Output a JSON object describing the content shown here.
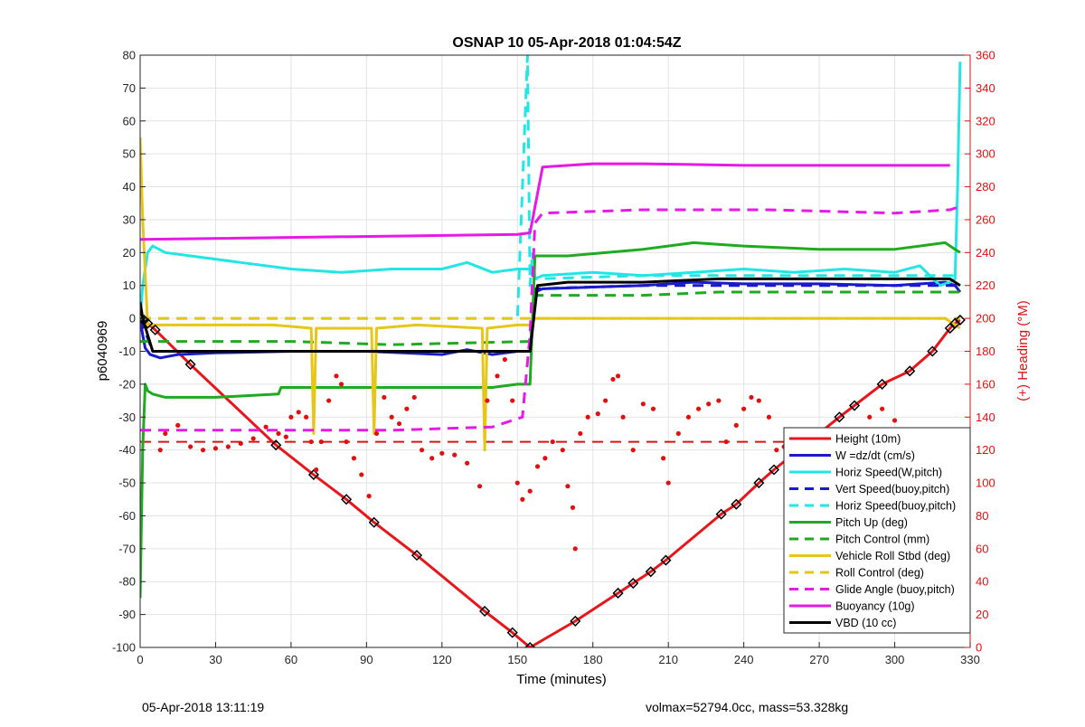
{
  "footer": {
    "timestamp": "05-Apr-2018 13:11:19",
    "summary": "volmax=52794.0cc, mass=53.328kg"
  },
  "chart_data": {
    "type": "line",
    "title": "OSNAP 10 05-Apr-2018 01:04:54Z",
    "xlabel": "Time (minutes)",
    "ylabel": "p6040969",
    "y2label": "(+) Heading (°M)",
    "xlim": [
      0,
      330
    ],
    "ylim": [
      -100,
      80
    ],
    "y2lim": [
      0,
      360
    ],
    "xticks": [
      0,
      30,
      60,
      90,
      120,
      150,
      180,
      210,
      240,
      270,
      300,
      330
    ],
    "yticks": [
      -100,
      -90,
      -80,
      -70,
      -60,
      -50,
      -40,
      -30,
      -20,
      -10,
      0,
      10,
      20,
      30,
      40,
      50,
      60,
      70,
      80
    ],
    "y2ticks": [
      0,
      20,
      40,
      60,
      80,
      100,
      120,
      140,
      160,
      180,
      200,
      220,
      240,
      260,
      280,
      300,
      320,
      340,
      360
    ],
    "grid": true,
    "legend_position": "bottom-right",
    "colors": {
      "height": "#e8161b",
      "w": "#1a1acc",
      "cyan": "#22e6e6",
      "blue_dash": "#1a1acc",
      "green": "#1faa1f",
      "yellow": "#e6c619",
      "magenta": "#e619e6",
      "black": "#000000",
      "heading": "#e01010",
      "right_axis": "#e01010"
    },
    "series": [
      {
        "name": "Height (10m)",
        "style": "solid",
        "color": "#e8161b",
        "marker": "diamond-triangle",
        "x": [
          0,
          1.5,
          3,
          6,
          20,
          54,
          69,
          82,
          93,
          110,
          137,
          148,
          155,
          173,
          190,
          196,
          203,
          209,
          231,
          237,
          246,
          252,
          278,
          284,
          295,
          306,
          315,
          322,
          324,
          326
        ],
        "y": [
          0,
          -0.5,
          -1.5,
          -3.5,
          -14,
          -38.5,
          -47.5,
          -55,
          -62,
          -72,
          -89,
          -95.5,
          -100,
          -92,
          -83.5,
          -80.5,
          -77,
          -73.5,
          -59.5,
          -56.5,
          -50,
          -46,
          -30,
          -26.5,
          -20,
          -16,
          -10,
          -3,
          -1.5,
          -0.5
        ]
      },
      {
        "name": "W =dz/dt (cm/s)",
        "style": "solid",
        "color": "#1a1acc",
        "x": [
          0,
          1,
          2,
          4,
          8,
          15,
          30,
          60,
          90,
          120,
          130,
          140,
          150,
          155,
          157,
          160,
          180,
          200,
          220,
          240,
          270,
          300,
          320,
          324,
          326
        ],
        "y": [
          0,
          -5,
          -9,
          -11,
          -12,
          -11,
          -10.5,
          -10,
          -10,
          -11,
          -9.5,
          -11,
          -10,
          -10,
          8,
          9,
          9.5,
          10,
          11,
          10.5,
          10.5,
          10,
          11,
          10,
          8
        ]
      },
      {
        "name": "Horiz Speed(W,pitch)",
        "style": "solid",
        "color": "#22e6e6",
        "x": [
          0,
          1,
          3,
          5,
          10,
          20,
          40,
          60,
          80,
          100,
          120,
          130,
          140,
          150,
          155,
          157,
          160,
          180,
          200,
          220,
          240,
          260,
          280,
          300,
          310,
          318,
          322,
          324,
          325,
          326
        ],
        "y": [
          0,
          10,
          20,
          22,
          20,
          19,
          17,
          15,
          14,
          15,
          15,
          17,
          14,
          15,
          15,
          12,
          13,
          14,
          13,
          14,
          15,
          14,
          15,
          14,
          16,
          10,
          11,
          12,
          40,
          78
        ]
      },
      {
        "name": "Vert Speed(buoy,pitch)",
        "style": "dashed",
        "color": "#1a1acc",
        "x": [
          0,
          5,
          60,
          120,
          155,
          157,
          200,
          260,
          326
        ],
        "y": [
          0,
          -10,
          -10,
          -10,
          -10,
          9,
          10,
          10,
          10
        ]
      },
      {
        "name": "Horiz Speed(buoy,pitch)",
        "style": "dashed",
        "color": "#22e6e6",
        "x": [
          0,
          5,
          60,
          120,
          150,
          154,
          155,
          156,
          157,
          200,
          260,
          326
        ],
        "y": [
          0,
          0,
          0,
          0,
          0,
          80,
          10,
          20,
          12,
          13,
          13,
          13
        ]
      },
      {
        "name": "Pitch Up (deg)",
        "style": "solid",
        "color": "#1faa1f",
        "x": [
          0,
          1,
          2,
          3,
          5,
          10,
          30,
          55,
          56,
          100,
          140,
          150,
          155,
          157,
          170,
          200,
          220,
          240,
          270,
          300,
          320,
          324,
          326
        ],
        "y": [
          -85,
          -40,
          -20,
          -22,
          -23,
          -24,
          -24,
          -23,
          -21,
          -21,
          -21,
          -20,
          -20,
          19,
          19,
          21,
          23,
          22,
          21,
          21,
          23,
          21,
          20
        ]
      },
      {
        "name": "Pitch Control (mm)",
        "style": "dashed",
        "color": "#1faa1f",
        "x": [
          0,
          5,
          60,
          100,
          155,
          157,
          200,
          230,
          326
        ],
        "y": [
          -7,
          -7,
          -7,
          -8,
          -7,
          7,
          7,
          8,
          8
        ]
      },
      {
        "name": "Vehicle Roll Stbd (deg)",
        "style": "solid",
        "color": "#e6c619",
        "x": [
          0,
          1,
          3,
          5,
          20,
          53,
          68,
          69,
          70,
          82,
          92,
          93,
          94,
          110,
          136,
          137,
          138,
          150,
          155,
          157,
          160,
          170,
          190,
          200,
          210,
          230,
          250,
          270,
          290,
          310,
          320,
          326
        ],
        "y": [
          55,
          30,
          -2,
          -2,
          -2,
          -2,
          -3,
          -35,
          -3,
          -3,
          -3,
          -35,
          -3,
          -2,
          -3,
          -40,
          -3,
          -2,
          -2,
          0,
          0,
          0,
          0,
          0,
          0,
          0,
          0,
          0,
          0,
          0,
          0,
          -3
        ]
      },
      {
        "name": "Roll Control (deg)",
        "style": "dashed",
        "color": "#e6c619",
        "x": [
          0,
          326
        ],
        "y": [
          0,
          0
        ]
      },
      {
        "name": "Glide Angle (buoy,pitch)",
        "style": "dashed",
        "color": "#e619e6",
        "x": [
          0,
          30,
          60,
          100,
          140,
          152,
          155,
          157,
          160,
          200,
          250,
          300,
          322,
          326
        ],
        "y": [
          -34,
          -34,
          -34,
          -34,
          -33,
          -30,
          -5,
          29,
          32,
          33,
          33,
          32,
          33,
          34
        ]
      },
      {
        "name": "Buoyancy (10g)",
        "style": "solid",
        "color": "#e619e6",
        "x": [
          0,
          150,
          155,
          160,
          180,
          200,
          240,
          280,
          322
        ],
        "y": [
          24,
          25.5,
          26,
          46,
          47,
          47,
          46.5,
          46.5,
          46.5
        ]
      },
      {
        "name": "VBD (10 cc)",
        "style": "solid",
        "color": "#000000",
        "x": [
          0,
          1,
          3,
          5,
          10,
          60,
          120,
          150,
          155,
          158,
          170,
          200,
          230,
          260,
          300,
          322,
          324,
          326
        ],
        "y": [
          5,
          0,
          -5,
          -10,
          -10,
          -10,
          -10,
          -10,
          -10,
          10,
          11,
          11,
          12,
          12,
          12,
          12,
          11,
          10
        ]
      }
    ],
    "heading_reference": {
      "value": 125,
      "style": "dashed",
      "color": "#e01010"
    },
    "heading_points": [
      {
        "x": 8,
        "y": 120
      },
      {
        "x": 10,
        "y": 130
      },
      {
        "x": 15,
        "y": 135
      },
      {
        "x": 20,
        "y": 122
      },
      {
        "x": 25,
        "y": 120
      },
      {
        "x": 30,
        "y": 121
      },
      {
        "x": 35,
        "y": 122
      },
      {
        "x": 40,
        "y": 124
      },
      {
        "x": 45,
        "y": 127
      },
      {
        "x": 50,
        "y": 134
      },
      {
        "x": 55,
        "y": 130
      },
      {
        "x": 58,
        "y": 128
      },
      {
        "x": 60,
        "y": 140
      },
      {
        "x": 63,
        "y": 143
      },
      {
        "x": 66,
        "y": 140
      },
      {
        "x": 68,
        "y": 125
      },
      {
        "x": 70,
        "y": 108
      },
      {
        "x": 72,
        "y": 125
      },
      {
        "x": 75,
        "y": 150
      },
      {
        "x": 78,
        "y": 165
      },
      {
        "x": 80,
        "y": 160
      },
      {
        "x": 82,
        "y": 125
      },
      {
        "x": 85,
        "y": 115
      },
      {
        "x": 88,
        "y": 105
      },
      {
        "x": 91,
        "y": 92
      },
      {
        "x": 94,
        "y": 130
      },
      {
        "x": 97,
        "y": 152
      },
      {
        "x": 100,
        "y": 140
      },
      {
        "x": 103,
        "y": 136
      },
      {
        "x": 106,
        "y": 145
      },
      {
        "x": 109,
        "y": 152
      },
      {
        "x": 112,
        "y": 120
      },
      {
        "x": 116,
        "y": 115
      },
      {
        "x": 120,
        "y": 118
      },
      {
        "x": 125,
        "y": 117
      },
      {
        "x": 130,
        "y": 112
      },
      {
        "x": 135,
        "y": 98
      },
      {
        "x": 138,
        "y": 150
      },
      {
        "x": 142,
        "y": 165
      },
      {
        "x": 145,
        "y": 175
      },
      {
        "x": 148,
        "y": 150
      },
      {
        "x": 150,
        "y": 100
      },
      {
        "x": 152,
        "y": 90
      },
      {
        "x": 155,
        "y": 95
      },
      {
        "x": 158,
        "y": 110
      },
      {
        "x": 161,
        "y": 115
      },
      {
        "x": 164,
        "y": 125
      },
      {
        "x": 168,
        "y": 120
      },
      {
        "x": 170,
        "y": 98
      },
      {
        "x": 172,
        "y": 85
      },
      {
        "x": 173,
        "y": 60
      },
      {
        "x": 175,
        "y": 130
      },
      {
        "x": 178,
        "y": 140
      },
      {
        "x": 182,
        "y": 142
      },
      {
        "x": 185,
        "y": 150
      },
      {
        "x": 188,
        "y": 163
      },
      {
        "x": 190,
        "y": 165
      },
      {
        "x": 192,
        "y": 140
      },
      {
        "x": 196,
        "y": 120
      },
      {
        "x": 200,
        "y": 148
      },
      {
        "x": 204,
        "y": 145
      },
      {
        "x": 208,
        "y": 115
      },
      {
        "x": 210,
        "y": 100
      },
      {
        "x": 214,
        "y": 130
      },
      {
        "x": 218,
        "y": 140
      },
      {
        "x": 222,
        "y": 145
      },
      {
        "x": 226,
        "y": 148
      },
      {
        "x": 230,
        "y": 150
      },
      {
        "x": 233,
        "y": 125
      },
      {
        "x": 237,
        "y": 135
      },
      {
        "x": 240,
        "y": 145
      },
      {
        "x": 243,
        "y": 152
      },
      {
        "x": 246,
        "y": 150
      },
      {
        "x": 250,
        "y": 140
      },
      {
        "x": 253,
        "y": 120
      },
      {
        "x": 256,
        "y": 122
      },
      {
        "x": 260,
        "y": 128
      },
      {
        "x": 265,
        "y": 130
      },
      {
        "x": 270,
        "y": 130
      },
      {
        "x": 275,
        "y": 128
      },
      {
        "x": 280,
        "y": 125
      },
      {
        "x": 285,
        "y": 130
      },
      {
        "x": 290,
        "y": 140
      },
      {
        "x": 295,
        "y": 145
      },
      {
        "x": 300,
        "y": 138
      },
      {
        "x": 305,
        "y": 132
      },
      {
        "x": 310,
        "y": 125
      },
      {
        "x": 314,
        "y": 130
      },
      {
        "x": 318,
        "y": 122
      },
      {
        "x": 322,
        "y": 115
      }
    ]
  }
}
